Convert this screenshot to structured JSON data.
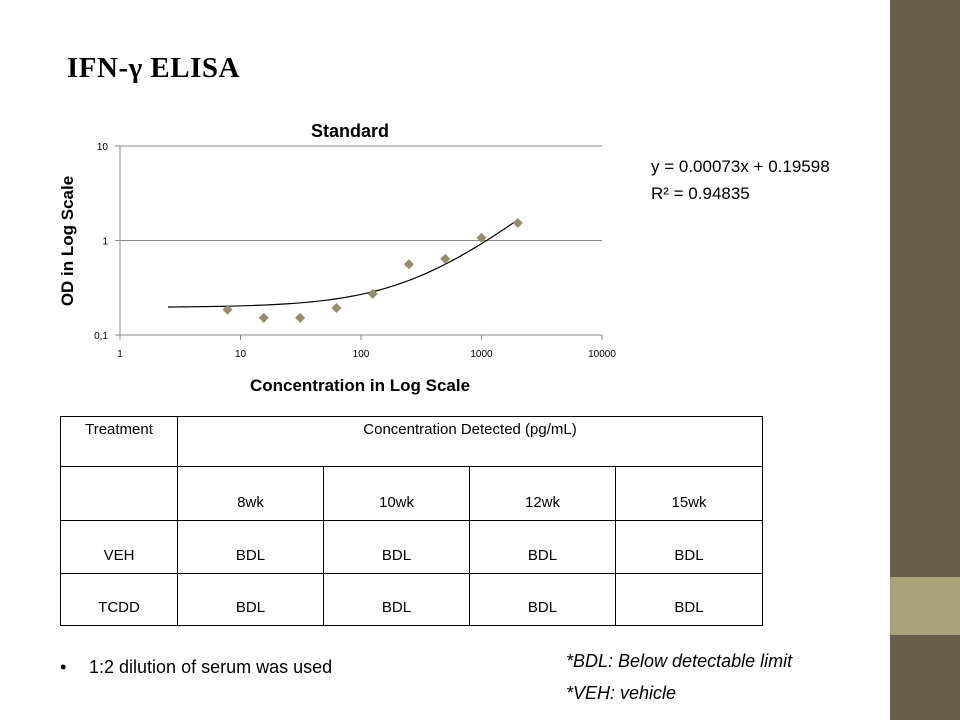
{
  "slide": {
    "title": "IFN-γ ELISA",
    "colors": {
      "sidebar_dark": "#675d49",
      "sidebar_light": "#a9a37b",
      "marker": "#968c67"
    }
  },
  "chart_data": {
    "type": "scatter",
    "title": "Standard",
    "xlabel": "Concentration in Log Scale",
    "ylabel": "OD in Log Scale",
    "x_scale": "log",
    "y_scale": "log",
    "xlim": [
      1,
      10000
    ],
    "ylim": [
      0.1,
      10
    ],
    "x_ticks": [
      "1",
      "10",
      "100",
      "1000",
      "10000"
    ],
    "y_ticks": [
      "10",
      "1",
      "0,1"
    ],
    "grid": "horizontal",
    "marker": "diamond",
    "series": [
      {
        "x": [
          7.8,
          15.6,
          31.25,
          62.5,
          125,
          250,
          500,
          1000,
          2000
        ],
        "y": [
          0.185,
          0.152,
          0.152,
          0.193,
          0.272,
          0.56,
          0.64,
          1.07,
          1.53
        ]
      }
    ],
    "trendline": {
      "type": "linear",
      "slope": 0.00073,
      "intercept": 0.19598,
      "x_range": [
        2.5,
        2000
      ]
    }
  },
  "equation": {
    "line1": "y = 0.00073x + 0.19598",
    "line2": "R² = 0.94835"
  },
  "table": {
    "header_treatment": "Treatment",
    "header_concentration": "Concentration Detected (pg/mL)",
    "weeks": [
      "8wk",
      "10wk",
      "12wk",
      "15wk"
    ],
    "rows": [
      {
        "label": "VEH",
        "values": [
          "BDL",
          "BDL",
          "BDL",
          "BDL"
        ]
      },
      {
        "label": "TCDD",
        "values": [
          "BDL",
          "BDL",
          "BDL",
          "BDL"
        ]
      }
    ]
  },
  "bullet": "1:2 dilution of serum was used",
  "notes": [
    "*BDL: Below detectable limit",
    "*VEH: vehicle"
  ]
}
